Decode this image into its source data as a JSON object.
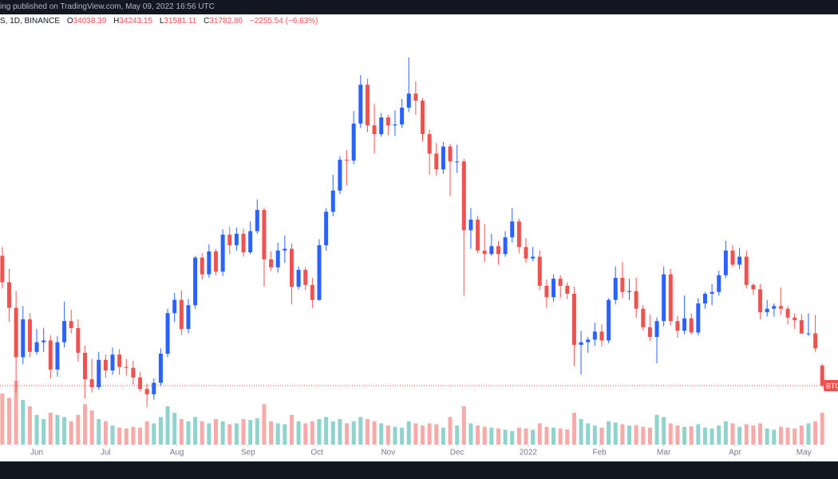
{
  "header": {
    "published": "ing published on TradingView.com, May 09, 2022 16:56 UTC",
    "symbol": "S, 1D, BINANCE",
    "legend": [
      {
        "label": "O",
        "value": 34038.39
      },
      {
        "label": "H",
        "value": 34243.15
      },
      {
        "label": "L",
        "value": 31581.11
      },
      {
        "label": "C",
        "value": 31782.86
      }
    ],
    "change": "−2255.54 (−6.63%)"
  },
  "chart_data": {
    "type": "candlestick",
    "price_tag": "BTC",
    "up_color": "#2962ff",
    "down_color": "#ef5350",
    "volume_up_color": "#8fd4cc",
    "volume_down_color": "#f7aaa8",
    "grid": false,
    "xlim": [
      0,
      360
    ],
    "ylim": [
      25080,
      72800
    ],
    "vlim": [
      0,
      300000
    ],
    "xticks": [
      {
        "value": 16,
        "label": "Jun"
      },
      {
        "value": 46,
        "label": "Jul"
      },
      {
        "value": 77,
        "label": "Aug"
      },
      {
        "value": 108,
        "label": "Sep"
      },
      {
        "value": 138,
        "label": "Oct"
      },
      {
        "value": 169,
        "label": "Nov"
      },
      {
        "value": 199,
        "label": "Dec"
      },
      {
        "value": 230,
        "label": "2022"
      },
      {
        "value": 261,
        "label": "Feb"
      },
      {
        "value": 289,
        "label": "Mar"
      },
      {
        "value": 320,
        "label": "Apr"
      },
      {
        "value": 350,
        "label": "May"
      }
    ],
    "x": [
      1,
      4,
      7,
      10,
      13,
      16,
      19,
      22,
      25,
      28,
      31,
      34,
      37,
      40,
      43,
      46,
      49,
      52,
      55,
      58,
      61,
      64,
      67,
      70,
      73,
      76,
      79,
      82,
      85,
      88,
      91,
      94,
      97,
      100,
      103,
      106,
      109,
      112,
      115,
      118,
      121,
      124,
      127,
      130,
      133,
      136,
      139,
      142,
      145,
      148,
      151,
      154,
      157,
      160,
      163,
      166,
      169,
      172,
      175,
      178,
      181,
      184,
      187,
      190,
      193,
      196,
      199,
      202,
      205,
      208,
      211,
      214,
      217,
      220,
      223,
      226,
      229,
      232,
      235,
      238,
      241,
      244,
      247,
      250,
      253,
      256,
      259,
      262,
      265,
      268,
      271,
      274,
      277,
      280,
      283,
      286,
      289,
      292,
      295,
      298,
      301,
      304,
      307,
      310,
      313,
      316,
      319,
      322,
      325,
      328,
      331,
      334,
      337,
      340,
      343,
      346,
      349,
      352,
      355,
      358
    ],
    "open": [
      46500,
      43500,
      40600,
      35000,
      39300,
      35600,
      36700,
      36900,
      33600,
      36700,
      39100,
      38300,
      35500,
      32500,
      31600,
      34700,
      33500,
      35300,
      33900,
      33800,
      32700,
      31400,
      30800,
      32100,
      35400,
      40000,
      41500,
      38200,
      40900,
      46300,
      44400,
      47000,
      44700,
      48900,
      47700,
      49000,
      46900,
      49300,
      51700,
      46100,
      45200,
      47100,
      47300,
      43000,
      44900,
      43200,
      41500,
      47700,
      51500,
      53900,
      57400,
      57300,
      61500,
      65900,
      61300,
      60300,
      62200,
      61300,
      61400,
      63300,
      64900,
      64100,
      60300,
      58100,
      56300,
      58900,
      57200,
      57200,
      49400,
      50600,
      47100,
      46700,
      47600,
      46700,
      48600,
      50400,
      47500,
      46200,
      46400,
      43100,
      41800,
      43900,
      43100,
      42200,
      36400,
      36700,
      37000,
      37900,
      36900,
      41500,
      44000,
      42400,
      42500,
      40500,
      38400,
      37300,
      39100,
      44400,
      39100,
      38000,
      39400,
      37800,
      41100,
      42200,
      42400,
      44300,
      47100,
      45500,
      46400,
      43200,
      42700,
      40100,
      40500,
      40800,
      40500,
      39500,
      39200,
      37700,
      37700,
      34038.39
    ],
    "high": [
      47500,
      45000,
      42500,
      40800,
      40000,
      38200,
      38300,
      37500,
      37400,
      41300,
      40400,
      39300,
      36300,
      34800,
      35600,
      35300,
      36100,
      35900,
      34800,
      34600,
      33300,
      32000,
      32600,
      36000,
      40500,
      42300,
      42600,
      41600,
      46500,
      46800,
      47800,
      47300,
      49500,
      49800,
      49700,
      49600,
      50400,
      52900,
      52000,
      47000,
      48000,
      48800,
      47900,
      45300,
      45200,
      44000,
      48400,
      51900,
      55700,
      57800,
      58500,
      62900,
      67000,
      66600,
      63700,
      62700,
      62500,
      63000,
      64300,
      69000,
      66300,
      64400,
      60800,
      59300,
      59400,
      59200,
      59100,
      57500,
      51900,
      51000,
      50100,
      49000,
      48200,
      49300,
      51900,
      50700,
      48500,
      47500,
      47100,
      43800,
      44400,
      44300,
      43500,
      43000,
      38000,
      37300,
      38900,
      38700,
      41700,
      45300,
      45800,
      43900,
      44000,
      40900,
      39800,
      39500,
      45300,
      45000,
      39700,
      42000,
      40000,
      41700,
      42400,
      43300,
      44800,
      48200,
      47700,
      47400,
      47100,
      43400,
      43300,
      41500,
      41100,
      42900,
      40800,
      40000,
      39900,
      40000,
      39800,
      34243.15
    ],
    "low": [
      42800,
      39000,
      31000,
      34200,
      35000,
      35300,
      35600,
      32600,
      32800,
      36100,
      37700,
      34500,
      30300,
      31000,
      31300,
      32700,
      33000,
      33000,
      32900,
      31900,
      31100,
      29300,
      30200,
      31700,
      35000,
      39000,
      37500,
      37700,
      40500,
      43800,
      44000,
      44300,
      44200,
      46700,
      47100,
      46400,
      46700,
      49000,
      43000,
      44800,
      44600,
      45700,
      41000,
      42700,
      42600,
      40600,
      41400,
      47100,
      51000,
      53500,
      54500,
      56900,
      61000,
      60500,
      58100,
      60000,
      60200,
      60100,
      61000,
      62800,
      62500,
      59500,
      55700,
      55600,
      55800,
      53300,
      55900,
      42000,
      47300,
      46800,
      45800,
      46500,
      45500,
      46400,
      48000,
      46800,
      45700,
      45900,
      42600,
      40600,
      41300,
      41700,
      41600,
      34000,
      33000,
      35500,
      36300,
      36200,
      36600,
      41000,
      41700,
      41500,
      39500,
      38000,
      36800,
      34300,
      38500,
      38600,
      37200,
      37600,
      37600,
      37500,
      40500,
      40900,
      42000,
      44000,
      45200,
      45000,
      42800,
      42100,
      39300,
      39600,
      39600,
      39800,
      38700,
      38200,
      37600,
      37400,
      35600,
      31581.11
    ],
    "close": [
      43500,
      40600,
      35000,
      39300,
      35600,
      36700,
      36900,
      33600,
      36700,
      39100,
      38300,
      35500,
      32500,
      31600,
      34700,
      33500,
      35300,
      33900,
      33800,
      32700,
      31400,
      30800,
      32100,
      35400,
      40000,
      41500,
      38200,
      40900,
      46300,
      44400,
      47000,
      44700,
      48900,
      47700,
      49000,
      46900,
      49300,
      51700,
      46100,
      45200,
      47100,
      47300,
      43000,
      44900,
      43200,
      41500,
      47700,
      51500,
      53900,
      57400,
      57300,
      61500,
      65900,
      61300,
      60300,
      62200,
      61300,
      61400,
      63300,
      64900,
      64100,
      60300,
      58100,
      56300,
      58900,
      57200,
      57200,
      49400,
      50600,
      47100,
      46700,
      47600,
      46700,
      48600,
      50400,
      47500,
      46200,
      46400,
      43100,
      41800,
      43900,
      43100,
      42200,
      36400,
      36700,
      37000,
      37900,
      36900,
      41500,
      44000,
      42400,
      42500,
      40500,
      38400,
      37300,
      39100,
      44400,
      39100,
      38000,
      39400,
      37800,
      41100,
      42200,
      42400,
      44300,
      47100,
      45500,
      46400,
      43200,
      42700,
      40100,
      40500,
      40800,
      40500,
      39500,
      39200,
      37700,
      37700,
      36000,
      31782.86
    ],
    "volume": [
      120000,
      110000,
      150000,
      105000,
      90000,
      70000,
      60000,
      75000,
      70000,
      65000,
      55000,
      70000,
      95000,
      80000,
      60000,
      55000,
      45000,
      40000,
      38000,
      42000,
      40000,
      55000,
      50000,
      65000,
      90000,
      75000,
      60000,
      55000,
      65000,
      55000,
      50000,
      60000,
      55000,
      48000,
      50000,
      60000,
      58000,
      62000,
      95000,
      55000,
      50000,
      48000,
      70000,
      55000,
      50000,
      55000,
      60000,
      65000,
      55000,
      60000,
      50000,
      55000,
      65000,
      60000,
      55000,
      50000,
      45000,
      42000,
      40000,
      55000,
      50000,
      45000,
      50000,
      48000,
      40000,
      65000,
      45000,
      90000,
      50000,
      45000,
      42000,
      40000,
      38000,
      35000,
      32000,
      40000,
      38000,
      35000,
      50000,
      42000,
      40000,
      38000,
      36000,
      75000,
      60000,
      50000,
      45000,
      40000,
      55000,
      52000,
      48000,
      45000,
      46000,
      42000,
      40000,
      70000,
      65000,
      50000,
      45000,
      42000,
      43000,
      48000,
      40000,
      38000,
      45000,
      55000,
      50000,
      42000,
      48000,
      45000,
      50000,
      38000,
      35000,
      42000,
      40000,
      38000,
      45000,
      50000,
      55000,
      75000
    ]
  }
}
